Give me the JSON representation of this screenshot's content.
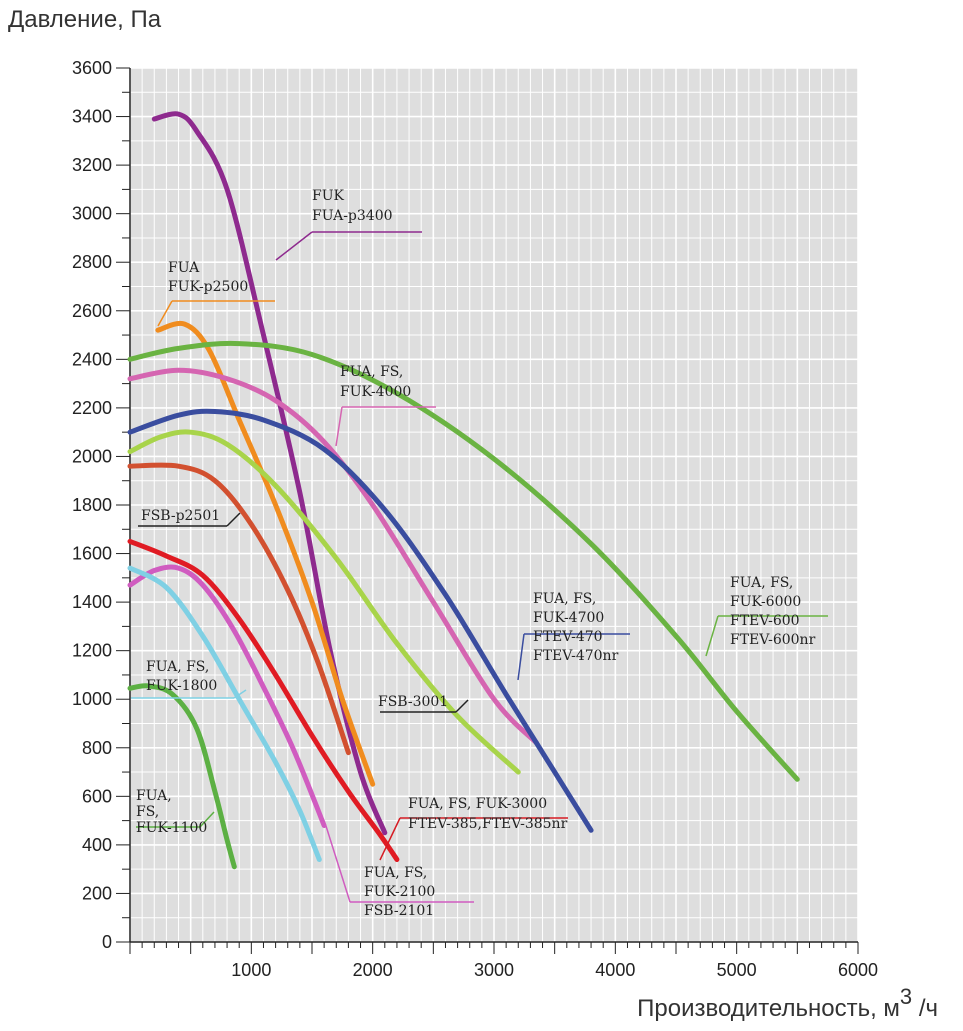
{
  "chart_data": {
    "type": "line",
    "title": "",
    "ylabel": "Давление, Па",
    "xlabel_main": "Производительность, м",
    "xlabel_sup": "3",
    "xlabel_tail": "/ч",
    "xlim": [
      0,
      6000
    ],
    "ylim": [
      0,
      3600
    ],
    "x_ticks": [
      0,
      1000,
      2000,
      3000,
      4000,
      5000,
      6000
    ],
    "x_tick_labels": [
      "",
      "1000",
      "2000",
      "3000",
      "4000",
      "5000",
      "6000"
    ],
    "y_ticks": [
      0,
      200,
      400,
      600,
      800,
      1000,
      1200,
      1400,
      1600,
      1800,
      2000,
      2200,
      2400,
      2600,
      2800,
      3000,
      3200,
      3400,
      3600
    ],
    "grid": true,
    "series": [
      {
        "name": "FUK FUA-p3400",
        "color": "#8e2a8e",
        "points": [
          [
            200,
            3390
          ],
          [
            400,
            3410
          ],
          [
            550,
            3340
          ],
          [
            800,
            3100
          ],
          [
            1100,
            2500
          ],
          [
            1400,
            1850
          ],
          [
            1650,
            1200
          ],
          [
            1900,
            700
          ],
          [
            2100,
            450
          ]
        ]
      },
      {
        "name": "FUA FUK-p2500",
        "color": "#f08c1e",
        "points": [
          [
            230,
            2520
          ],
          [
            450,
            2545
          ],
          [
            650,
            2440
          ],
          [
            900,
            2150
          ],
          [
            1200,
            1800
          ],
          [
            1500,
            1400
          ],
          [
            1750,
            1000
          ],
          [
            2000,
            650
          ]
        ]
      },
      {
        "name": "FUA, FS, FUK-6000",
        "color": "#6ab342",
        "points": [
          [
            0,
            2400
          ],
          [
            400,
            2445
          ],
          [
            900,
            2465
          ],
          [
            1500,
            2420
          ],
          [
            2200,
            2260
          ],
          [
            3000,
            1990
          ],
          [
            3800,
            1640
          ],
          [
            4500,
            1260
          ],
          [
            5000,
            950
          ],
          [
            5500,
            670
          ]
        ]
      },
      {
        "name": "FUA, FS, FUK-4000",
        "color": "#d565b1",
        "points": [
          [
            0,
            2320
          ],
          [
            400,
            2355
          ],
          [
            800,
            2320
          ],
          [
            1200,
            2230
          ],
          [
            1600,
            2060
          ],
          [
            2000,
            1800
          ],
          [
            2500,
            1400
          ],
          [
            3000,
            1000
          ],
          [
            3350,
            820
          ]
        ]
      },
      {
        "name": "FUA, FS, FUK-4700",
        "color": "#3a4d9f",
        "points": [
          [
            0,
            2100
          ],
          [
            400,
            2170
          ],
          [
            700,
            2185
          ],
          [
            1100,
            2150
          ],
          [
            1600,
            2030
          ],
          [
            2100,
            1780
          ],
          [
            2600,
            1430
          ],
          [
            3100,
            1020
          ],
          [
            3500,
            700
          ],
          [
            3800,
            460
          ]
        ]
      },
      {
        "name": "FSB-3001",
        "color": "#a8d44a",
        "points": [
          [
            0,
            2020
          ],
          [
            250,
            2080
          ],
          [
            500,
            2100
          ],
          [
            800,
            2050
          ],
          [
            1200,
            1880
          ],
          [
            1700,
            1580
          ],
          [
            2200,
            1230
          ],
          [
            2700,
            930
          ],
          [
            3200,
            700
          ]
        ]
      },
      {
        "name": "FSB-p2501",
        "color": "#d2502f",
        "points": [
          [
            0,
            1960
          ],
          [
            400,
            1960
          ],
          [
            700,
            1900
          ],
          [
            1000,
            1720
          ],
          [
            1300,
            1450
          ],
          [
            1550,
            1150
          ],
          [
            1800,
            780
          ]
        ]
      },
      {
        "name": "FUA, FS, FUK-3000",
        "color": "#e01b23",
        "points": [
          [
            0,
            1650
          ],
          [
            300,
            1590
          ],
          [
            600,
            1510
          ],
          [
            900,
            1330
          ],
          [
            1200,
            1100
          ],
          [
            1500,
            850
          ],
          [
            1800,
            620
          ],
          [
            2050,
            450
          ],
          [
            2200,
            340
          ]
        ]
      },
      {
        "name": "FSB-2101",
        "color": "#d05cc0",
        "points": [
          [
            0,
            1470
          ],
          [
            200,
            1530
          ],
          [
            400,
            1540
          ],
          [
            600,
            1470
          ],
          [
            850,
            1290
          ],
          [
            1100,
            1050
          ],
          [
            1350,
            790
          ],
          [
            1600,
            480
          ]
        ]
      },
      {
        "name": "FUA, FS, FUK-1800",
        "color": "#7fd0e4",
        "points": [
          [
            0,
            1540
          ],
          [
            300,
            1460
          ],
          [
            600,
            1260
          ],
          [
            900,
            1000
          ],
          [
            1200,
            740
          ],
          [
            1400,
            540
          ],
          [
            1560,
            340
          ]
        ]
      },
      {
        "name": "FUA, FS, FUK-1100",
        "color": "#5cb043",
        "points": [
          [
            0,
            1045
          ],
          [
            150,
            1055
          ],
          [
            350,
            1020
          ],
          [
            550,
            880
          ],
          [
            700,
            620
          ],
          [
            800,
            420
          ],
          [
            860,
            310
          ]
        ]
      }
    ],
    "annotations": [
      {
        "id": "fuk3400",
        "lines": [
          "FUK",
          "FUA-p3400"
        ]
      },
      {
        "id": "fuk2500",
        "lines": [
          "FUA",
          "FUK-p2500"
        ]
      },
      {
        "id": "fuk4000",
        "lines": [
          "FUA, FS,",
          "FUK-4000"
        ]
      },
      {
        "id": "fsbp2501",
        "lines": [
          "FSB-p2501"
        ]
      },
      {
        "id": "fuk4700",
        "lines": [
          "FUA, FS,",
          "FUK-4700",
          "",
          "FTEV-470",
          "FTEV-470nr"
        ]
      },
      {
        "id": "fuk6000",
        "lines": [
          "FUA, FS,",
          "FUK-6000",
          "",
          "FTEV-600",
          "FTEV-600nr"
        ]
      },
      {
        "id": "fuk1800",
        "lines": [
          "FUA, FS,",
          "FUK-1800"
        ]
      },
      {
        "id": "fsb3001",
        "lines": [
          "FSB-3001"
        ]
      },
      {
        "id": "fuk3000",
        "lines": [
          "FUA, FS, FUK-3000",
          "",
          "FTEV-385,FTEV-385nr"
        ]
      },
      {
        "id": "fuk1100",
        "lines": [
          "FUA,",
          "FS,",
          "",
          "FUK-1100"
        ]
      },
      {
        "id": "fuk2100",
        "lines": [
          "FUA, FS,",
          "FUK-2100",
          "",
          "FSB-2101"
        ]
      }
    ]
  }
}
